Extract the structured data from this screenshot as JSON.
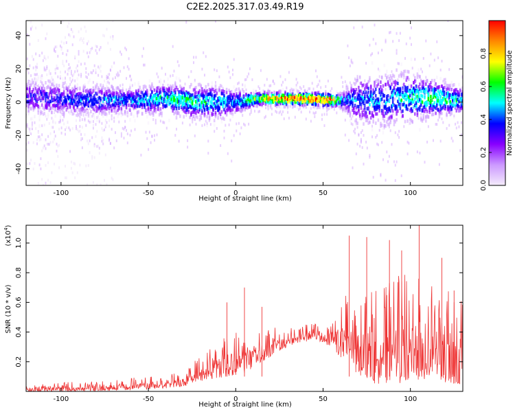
{
  "title": "C2E2.2025.317.03.49.R19",
  "chart_data": [
    {
      "type": "heatmap",
      "xlabel": "Height of straight line (km)",
      "ylabel": "Frequency (Hz)",
      "xlim": [
        -120,
        130
      ],
      "ylim": [
        -50,
        49
      ],
      "x_ticks": [
        -100,
        -50,
        0,
        50,
        100
      ],
      "y_ticks": [
        -40,
        -20,
        0,
        20,
        40
      ],
      "colorbar": {
        "label": "Normalized spectral amplitude",
        "range": [
          0,
          1
        ],
        "ticks": [
          0.0,
          0.2,
          0.4,
          0.6,
          0.8
        ],
        "colors": [
          "#f4ecfc",
          "#cc99ff",
          "#8800ff",
          "#0000ff",
          "#00ffff",
          "#00ff00",
          "#ffff00",
          "#ff8800",
          "#ff0000"
        ]
      },
      "band_center_hz": [
        {
          "x": -120,
          "y": 3
        },
        {
          "x": -100,
          "y": 2
        },
        {
          "x": -80,
          "y": 1
        },
        {
          "x": -60,
          "y": 1
        },
        {
          "x": -40,
          "y": 2
        },
        {
          "x": -20,
          "y": 0
        },
        {
          "x": 0,
          "y": 0
        },
        {
          "x": 12,
          "y": 2
        },
        {
          "x": 20,
          "y": 2
        },
        {
          "x": 40,
          "y": 2
        },
        {
          "x": 60,
          "y": 1
        },
        {
          "x": 80,
          "y": 1
        },
        {
          "x": 100,
          "y": 3
        },
        {
          "x": 130,
          "y": 1
        }
      ],
      "amplitude_profile": [
        {
          "x": -120,
          "v": 0.35
        },
        {
          "x": -100,
          "v": 0.4
        },
        {
          "x": -80,
          "v": 0.45
        },
        {
          "x": -60,
          "v": 0.45
        },
        {
          "x": -40,
          "v": 0.55
        },
        {
          "x": -25,
          "v": 0.6
        },
        {
          "x": -15,
          "v": 0.55
        },
        {
          "x": 0,
          "v": 0.45
        },
        {
          "x": 12,
          "v": 0.7
        },
        {
          "x": 20,
          "v": 0.85
        },
        {
          "x": 35,
          "v": 0.95
        },
        {
          "x": 55,
          "v": 0.95
        },
        {
          "x": 62,
          "v": 0.45
        },
        {
          "x": 80,
          "v": 0.45
        },
        {
          "x": 100,
          "v": 0.55
        },
        {
          "x": 115,
          "v": 0.6
        },
        {
          "x": 130,
          "v": 0.5
        }
      ],
      "band_width_hz": [
        {
          "x": -120,
          "w": 10
        },
        {
          "x": -60,
          "w": 8
        },
        {
          "x": -10,
          "w": 10
        },
        {
          "x": 12,
          "w": 4
        },
        {
          "x": 60,
          "w": 4
        },
        {
          "x": 70,
          "w": 14
        },
        {
          "x": 90,
          "w": 16
        },
        {
          "x": 130,
          "w": 8
        }
      ]
    },
    {
      "type": "line",
      "xlabel": "Height of straight line (km)",
      "ylabel": "SNR (10 * v/v)",
      "y_multiplier": "(x10",
      "y_multiplier_exp": "4",
      "y_multiplier_close": ")",
      "xlim": [
        -120,
        130
      ],
      "ylim": [
        0,
        1.12
      ],
      "x_ticks": [
        -100,
        -50,
        0,
        50,
        100
      ],
      "y_ticks": [
        0.2,
        0.4,
        0.6,
        0.8,
        1.0
      ],
      "color": "#ee3333",
      "baseline_envelope": [
        {
          "x": -120,
          "low": 0.0,
          "high": 0.05
        },
        {
          "x": -100,
          "low": 0.0,
          "high": 0.06
        },
        {
          "x": -80,
          "low": 0.0,
          "high": 0.07
        },
        {
          "x": -60,
          "low": 0.01,
          "high": 0.09
        },
        {
          "x": -40,
          "low": 0.02,
          "high": 0.11
        },
        {
          "x": -30,
          "low": 0.03,
          "high": 0.14
        },
        {
          "x": -25,
          "low": 0.05,
          "high": 0.2
        },
        {
          "x": -15,
          "low": 0.08,
          "high": 0.3
        },
        {
          "x": -5,
          "low": 0.1,
          "high": 0.4
        },
        {
          "x": 5,
          "low": 0.12,
          "high": 0.45
        },
        {
          "x": 15,
          "low": 0.2,
          "high": 0.42
        },
        {
          "x": 30,
          "low": 0.3,
          "high": 0.44
        },
        {
          "x": 45,
          "low": 0.35,
          "high": 0.46
        },
        {
          "x": 55,
          "low": 0.3,
          "high": 0.55
        },
        {
          "x": 65,
          "low": 0.15,
          "high": 0.7
        },
        {
          "x": 80,
          "low": 0.05,
          "high": 0.75
        },
        {
          "x": 100,
          "low": 0.05,
          "high": 0.8
        },
        {
          "x": 115,
          "low": 0.05,
          "high": 0.7
        },
        {
          "x": 130,
          "low": 0.05,
          "high": 0.65
        }
      ],
      "peaks": [
        {
          "x": 65,
          "y": 1.05
        },
        {
          "x": 75,
          "y": 1.04
        },
        {
          "x": 88,
          "y": 1.02
        },
        {
          "x": 95,
          "y": 0.95
        },
        {
          "x": 105,
          "y": 1.12
        },
        {
          "x": 118,
          "y": 0.9
        },
        {
          "x": 125,
          "y": 0.68
        },
        {
          "x": -5,
          "y": 0.6
        },
        {
          "x": 5,
          "y": 0.7
        },
        {
          "x": 15,
          "y": 0.57
        }
      ]
    }
  ]
}
